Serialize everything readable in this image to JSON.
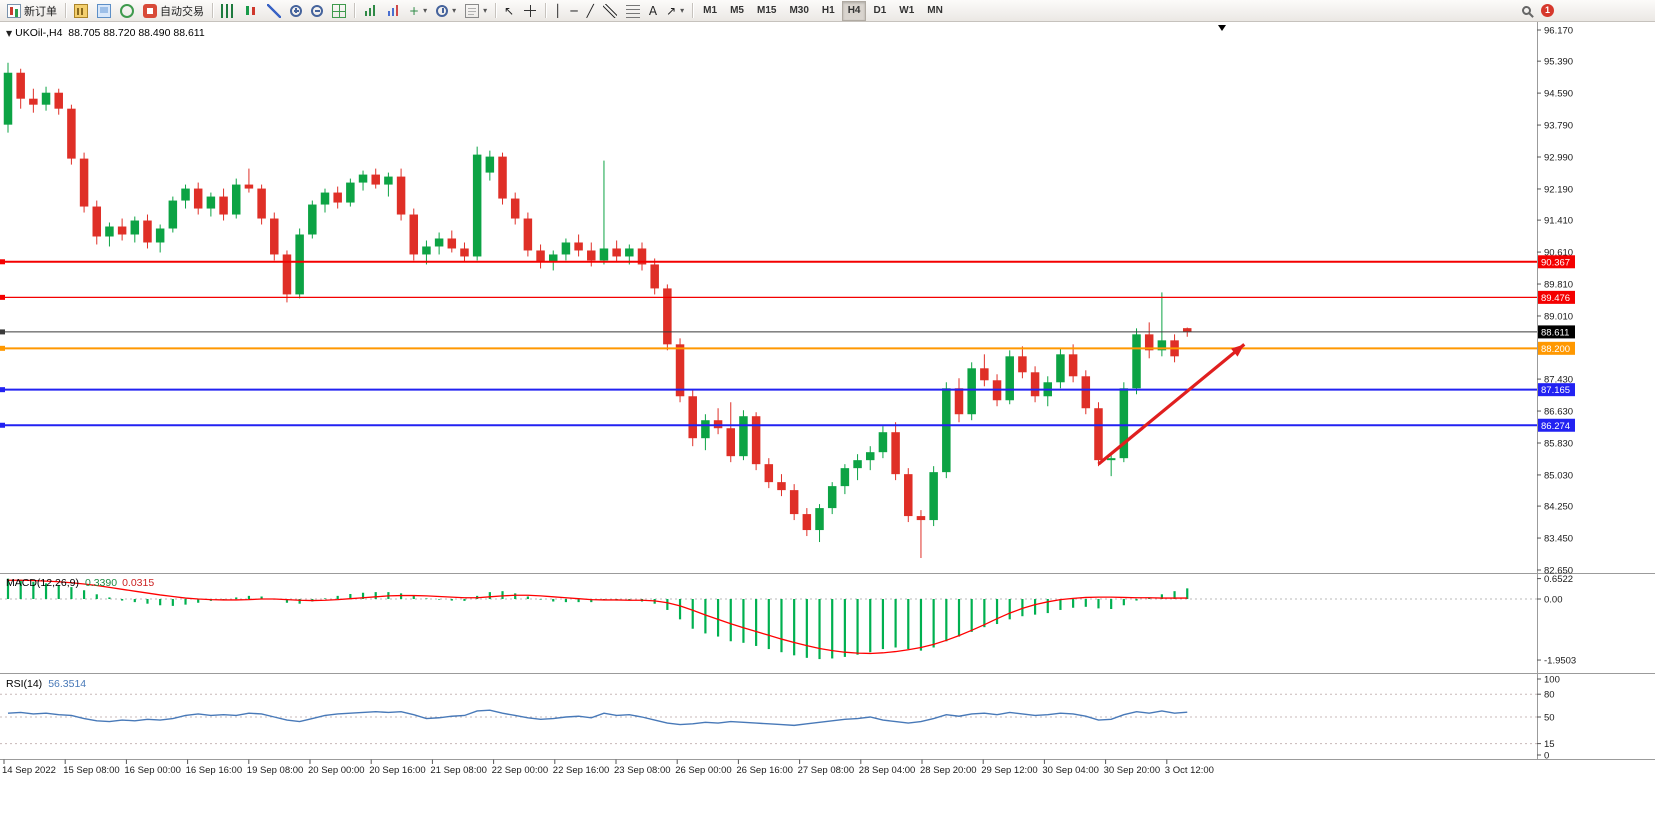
{
  "toolbar": {
    "groups": [
      {
        "items": [
          {
            "name": "new-order-button",
            "icon": "ic-new-order",
            "label": "新订单"
          }
        ]
      },
      {
        "items": [
          {
            "name": "new-chart-button",
            "icon": "ic-new-chart"
          },
          {
            "name": "profiles-button",
            "icon": "ic-profiles"
          },
          {
            "name": "refresh-button",
            "icon": "ic-refresh"
          },
          {
            "name": "auto-trading-button",
            "icon": "ic-auto",
            "label": "自动交易"
          }
        ]
      },
      {
        "items": [
          {
            "name": "bar-chart-button",
            "icon": "ic-bars"
          },
          {
            "name": "candlestick-chart-button",
            "icon": "ic-candles"
          },
          {
            "name": "line-chart-button",
            "icon": "ic-linechart"
          },
          {
            "name": "zoom-in-button",
            "icon": "ic-zoom-in"
          },
          {
            "name": "zoom-out-button",
            "icon": "ic-zoom-out"
          },
          {
            "name": "tile-windows-button",
            "icon": "ic-grid"
          }
        ]
      },
      {
        "items": [
          {
            "name": "indicators-button",
            "icon": "ic-indicators"
          },
          {
            "name": "experts-button",
            "icon": "ic-experts"
          },
          {
            "name": "add-indicator-dropdown",
            "glyph": "+",
            "color": "#2f8a46",
            "dropdown": true
          },
          {
            "name": "period-dropdown",
            "icon": "ic-clock",
            "dropdown": true
          },
          {
            "name": "template-dropdown",
            "icon": "ic-template",
            "dropdown": true
          }
        ]
      },
      {
        "items": [
          {
            "name": "cursor-button",
            "glyph": "↖",
            "color": "#222"
          },
          {
            "name": "crosshair-button",
            "icon": "ic-cross"
          }
        ]
      },
      {
        "items": [
          {
            "name": "vertical-line-button",
            "glyph": "│",
            "color": "#222"
          },
          {
            "name": "horizontal-line-button",
            "glyph": "─",
            "color": "#222"
          },
          {
            "name": "trendline-button",
            "glyph": "╱",
            "color": "#222"
          },
          {
            "name": "channel-button",
            "icon": "ic-channel"
          },
          {
            "name": "fibonacci-button",
            "icon": "ic-fibo"
          },
          {
            "name": "text-button",
            "glyph": "A",
            "color": "#222"
          },
          {
            "name": "arrows-dropdown",
            "glyph": "↗",
            "color": "#222",
            "dropdown": true
          }
        ]
      },
      {
        "items": [
          {
            "name": "tf-m1-button",
            "label": "M1"
          },
          {
            "name": "tf-m5-button",
            "label": "M5"
          },
          {
            "name": "tf-m15-button",
            "label": "M15"
          },
          {
            "name": "tf-m30-button",
            "label": "M30"
          },
          {
            "name": "tf-h1-button",
            "label": "H1"
          },
          {
            "name": "tf-h4-button",
            "label": "H4",
            "active": true
          },
          {
            "name": "tf-d1-button",
            "label": "D1"
          },
          {
            "name": "tf-w1-button",
            "label": "W1"
          },
          {
            "name": "tf-mn-button",
            "label": "MN"
          }
        ]
      }
    ],
    "right": {
      "badge": "1"
    }
  },
  "chart_data": [
    {
      "type": "candlestick",
      "title": "UKOil-,H4",
      "ohlc_display": "88.705 88.720 88.490 88.611",
      "ylim": [
        82.65,
        96.17
      ],
      "colors": {
        "up": "#0ca344",
        "down": "#df2f27"
      },
      "y_ticks": [
        "96.170",
        "95.390",
        "94.590",
        "93.790",
        "92.990",
        "92.190",
        "91.410",
        "90.610",
        "89.810",
        "89.010",
        "87.430",
        "86.630",
        "85.830",
        "85.030",
        "84.250",
        "83.450",
        "82.650"
      ],
      "x_labels": [
        "14 Sep 2022",
        "15 Sep 08:00",
        "16 Sep 00:00",
        "16 Sep 16:00",
        "19 Sep 08:00",
        "20 Sep 00:00",
        "20 Sep 16:00",
        "21 Sep 08:00",
        "22 Sep 00:00",
        "22 Sep 16:00",
        "23 Sep 08:00",
        "26 Sep 00:00",
        "26 Sep 16:00",
        "27 Sep 08:00",
        "28 Sep 04:00",
        "28 Sep 20:00",
        "29 Sep 12:00",
        "30 Sep 04:00",
        "30 Sep 20:00",
        "3 Oct 12:00"
      ],
      "hlines": [
        {
          "name": "resistance-line-90367",
          "price": 90.367,
          "color": "#f40000",
          "width": 2,
          "label": "90.367",
          "badge_bg": "#f40000"
        },
        {
          "name": "resistance-line-89476",
          "price": 89.476,
          "color": "#f40000",
          "width": 1.2,
          "label": "89.476",
          "badge_bg": "#f40000"
        },
        {
          "name": "bid-price-line",
          "price": 88.611,
          "color": "#3a3a3a",
          "width": 1,
          "label": "88.611",
          "badge_bg": "#000000"
        },
        {
          "name": "support-line-88200",
          "price": 88.2,
          "color": "#ff9800",
          "width": 2,
          "label": "88.200",
          "badge_bg": "#ff9800"
        },
        {
          "name": "support-line-87165",
          "price": 87.165,
          "color": "#2222f2",
          "width": 2,
          "label": "87.165",
          "badge_bg": "#2222f2"
        },
        {
          "name": "support-line-86274",
          "price": 86.274,
          "color": "#2222f2",
          "width": 2,
          "label": "86.274",
          "badge_bg": "#2222f2"
        }
      ],
      "arrow": {
        "from": {
          "candle": 86,
          "price": 85.3
        },
        "to": {
          "candle": 97.5,
          "price": 88.3
        },
        "color": "#e01f1f",
        "width": 3.2
      },
      "candles": [
        [
          93.8,
          95.35,
          93.6,
          95.1
        ],
        [
          95.1,
          95.2,
          94.2,
          94.45
        ],
        [
          94.45,
          94.7,
          94.1,
          94.3
        ],
        [
          94.3,
          94.75,
          94.15,
          94.6
        ],
        [
          94.6,
          94.7,
          94.05,
          94.2
        ],
        [
          94.2,
          94.3,
          92.8,
          92.95
        ],
        [
          92.95,
          93.1,
          91.6,
          91.75
        ],
        [
          91.75,
          91.9,
          90.8,
          91.0
        ],
        [
          91.0,
          91.35,
          90.75,
          91.25
        ],
        [
          91.25,
          91.45,
          90.9,
          91.05
        ],
        [
          91.05,
          91.5,
          90.85,
          91.4
        ],
        [
          91.4,
          91.55,
          90.7,
          90.85
        ],
        [
          90.85,
          91.3,
          90.6,
          91.2
        ],
        [
          91.2,
          92.0,
          91.1,
          91.9
        ],
        [
          91.9,
          92.3,
          91.7,
          92.2
        ],
        [
          92.2,
          92.35,
          91.55,
          91.7
        ],
        [
          91.7,
          92.1,
          91.5,
          92.0
        ],
        [
          92.0,
          92.2,
          91.4,
          91.55
        ],
        [
          91.55,
          92.45,
          91.45,
          92.3
        ],
        [
          92.3,
          92.7,
          92.1,
          92.2
        ],
        [
          92.2,
          92.3,
          91.3,
          91.45
        ],
        [
          91.45,
          91.6,
          90.4,
          90.55
        ],
        [
          90.55,
          90.65,
          89.35,
          89.55
        ],
        [
          89.55,
          91.2,
          89.45,
          91.05
        ],
        [
          91.05,
          91.9,
          90.95,
          91.8
        ],
        [
          91.8,
          92.2,
          91.6,
          92.1
        ],
        [
          92.1,
          92.25,
          91.7,
          91.85
        ],
        [
          91.85,
          92.45,
          91.75,
          92.35
        ],
        [
          92.35,
          92.65,
          92.15,
          92.55
        ],
        [
          92.55,
          92.7,
          92.2,
          92.3
        ],
        [
          92.3,
          92.6,
          92.0,
          92.5
        ],
        [
          92.5,
          92.7,
          91.4,
          91.55
        ],
        [
          91.55,
          91.7,
          90.4,
          90.55
        ],
        [
          90.55,
          90.9,
          90.3,
          90.75
        ],
        [
          90.75,
          91.1,
          90.55,
          90.95
        ],
        [
          90.95,
          91.15,
          90.6,
          90.7
        ],
        [
          90.7,
          90.85,
          90.35,
          90.5
        ],
        [
          90.5,
          93.25,
          90.4,
          93.05
        ],
        [
          92.6,
          93.15,
          92.4,
          93.0
        ],
        [
          93.0,
          93.1,
          91.8,
          91.95
        ],
        [
          91.95,
          92.1,
          91.3,
          91.45
        ],
        [
          91.45,
          91.6,
          90.5,
          90.65
        ],
        [
          90.65,
          90.8,
          90.2,
          90.35
        ],
        [
          90.35,
          90.65,
          90.15,
          90.55
        ],
        [
          90.55,
          90.95,
          90.4,
          90.85
        ],
        [
          90.85,
          91.05,
          90.5,
          90.65
        ],
        [
          90.65,
          90.85,
          90.25,
          90.4
        ],
        [
          90.4,
          92.9,
          90.3,
          90.7
        ],
        [
          90.7,
          90.9,
          90.35,
          90.5
        ],
        [
          90.5,
          90.8,
          90.3,
          90.7
        ],
        [
          90.7,
          90.85,
          90.15,
          90.3
        ],
        [
          90.3,
          90.45,
          89.55,
          89.7
        ],
        [
          89.7,
          89.8,
          88.15,
          88.3
        ],
        [
          88.3,
          88.45,
          86.85,
          87.0
        ],
        [
          87.0,
          87.15,
          85.75,
          85.95
        ],
        [
          85.95,
          86.55,
          85.65,
          86.4
        ],
        [
          86.4,
          86.7,
          86.05,
          86.2
        ],
        [
          86.2,
          86.85,
          85.35,
          85.5
        ],
        [
          85.5,
          86.65,
          85.4,
          86.5
        ],
        [
          86.5,
          86.6,
          85.15,
          85.3
        ],
        [
          85.3,
          85.45,
          84.7,
          84.85
        ],
        [
          84.85,
          85.05,
          84.5,
          84.65
        ],
        [
          84.65,
          84.8,
          83.9,
          84.05
        ],
        [
          84.05,
          84.2,
          83.5,
          83.65
        ],
        [
          83.65,
          84.3,
          83.35,
          84.2
        ],
        [
          84.2,
          84.85,
          84.05,
          84.75
        ],
        [
          84.75,
          85.3,
          84.55,
          85.2
        ],
        [
          85.2,
          85.55,
          84.9,
          85.4
        ],
        [
          85.4,
          85.75,
          85.15,
          85.6
        ],
        [
          85.6,
          86.25,
          85.45,
          86.1
        ],
        [
          86.1,
          86.35,
          84.9,
          85.05
        ],
        [
          85.05,
          85.2,
          83.85,
          84.0
        ],
        [
          84.0,
          84.15,
          82.95,
          83.9
        ],
        [
          83.9,
          85.25,
          83.75,
          85.1
        ],
        [
          85.1,
          87.35,
          84.95,
          87.2
        ],
        [
          87.2,
          87.45,
          86.35,
          86.55
        ],
        [
          86.55,
          87.85,
          86.4,
          87.7
        ],
        [
          87.7,
          88.05,
          87.25,
          87.4
        ],
        [
          87.4,
          87.55,
          86.75,
          86.9
        ],
        [
          86.9,
          88.15,
          86.8,
          88.0
        ],
        [
          88.0,
          88.25,
          87.45,
          87.6
        ],
        [
          87.6,
          87.75,
          86.85,
          87.0
        ],
        [
          87.0,
          87.5,
          86.75,
          87.35
        ],
        [
          87.35,
          88.2,
          87.2,
          88.05
        ],
        [
          88.05,
          88.3,
          87.35,
          87.5
        ],
        [
          87.5,
          87.65,
          86.55,
          86.7
        ],
        [
          86.7,
          86.85,
          85.25,
          85.4
        ],
        [
          85.4,
          85.55,
          85.0,
          85.45
        ],
        [
          85.45,
          87.35,
          85.35,
          87.2
        ],
        [
          87.2,
          88.7,
          87.05,
          88.55
        ],
        [
          88.55,
          88.85,
          87.95,
          88.15
        ],
        [
          88.15,
          89.6,
          88.0,
          88.4
        ],
        [
          88.4,
          88.55,
          87.85,
          88.0
        ],
        [
          88.705,
          88.72,
          88.49,
          88.611
        ]
      ]
    },
    {
      "type": "bar",
      "label": "MACD(12,26,9)",
      "values_display": [
        "0.3390",
        "0.0315"
      ],
      "colors": {
        "histogram": "#00b050",
        "signal": "#ff0000"
      },
      "y_ticks": [
        "0.6522",
        "0.00",
        "-1.9503"
      ],
      "histogram": [
        0.65,
        0.62,
        0.55,
        0.5,
        0.45,
        0.38,
        0.28,
        0.15,
        0.05,
        -0.05,
        -0.1,
        -0.15,
        -0.2,
        -0.22,
        -0.18,
        -0.12,
        -0.06,
        -0.02,
        0.05,
        0.1,
        0.08,
        -0.02,
        -0.12,
        -0.15,
        -0.08,
        0.02,
        0.1,
        0.16,
        0.2,
        0.22,
        0.22,
        0.18,
        0.1,
        0.02,
        -0.02,
        -0.05,
        -0.06,
        0.1,
        0.22,
        0.25,
        0.18,
        0.08,
        -0.02,
        -0.08,
        -0.1,
        -0.1,
        -0.1,
        -0.02,
        -0.05,
        -0.05,
        -0.08,
        -0.15,
        -0.35,
        -0.65,
        -0.95,
        -1.1,
        -1.2,
        -1.35,
        -1.4,
        -1.5,
        -1.6,
        -1.7,
        -1.8,
        -1.88,
        -1.92,
        -1.9,
        -1.85,
        -1.78,
        -1.7,
        -1.6,
        -1.55,
        -1.6,
        -1.65,
        -1.55,
        -1.35,
        -1.2,
        -1.05,
        -0.9,
        -0.8,
        -0.65,
        -0.55,
        -0.5,
        -0.45,
        -0.35,
        -0.28,
        -0.25,
        -0.3,
        -0.32,
        -0.2,
        -0.05,
        0.05,
        0.15,
        0.25,
        0.34
      ],
      "signal": [
        0.6,
        0.6,
        0.59,
        0.57,
        0.55,
        0.52,
        0.48,
        0.43,
        0.37,
        0.31,
        0.25,
        0.19,
        0.13,
        0.08,
        0.03,
        0.0,
        -0.02,
        -0.03,
        -0.03,
        -0.02,
        0.0,
        0.0,
        -0.02,
        -0.04,
        -0.05,
        -0.04,
        -0.02,
        0.01,
        0.04,
        0.07,
        0.1,
        0.11,
        0.11,
        0.1,
        0.08,
        0.06,
        0.04,
        0.04,
        0.07,
        0.1,
        0.12,
        0.12,
        0.1,
        0.07,
        0.04,
        0.01,
        -0.02,
        -0.03,
        -0.03,
        -0.04,
        -0.04,
        -0.06,
        -0.12,
        -0.22,
        -0.36,
        -0.51,
        -0.65,
        -0.79,
        -0.92,
        -1.04,
        -1.16,
        -1.28,
        -1.39,
        -1.49,
        -1.58,
        -1.65,
        -1.7,
        -1.73,
        -1.74,
        -1.72,
        -1.68,
        -1.62,
        -1.55,
        -1.45,
        -1.32,
        -1.17,
        -1.0,
        -0.82,
        -0.63,
        -0.45,
        -0.3,
        -0.18,
        -0.09,
        -0.02,
        0.02,
        0.05,
        0.06,
        0.06,
        0.05,
        0.04,
        0.04,
        0.03,
        0.03,
        0.03
      ]
    },
    {
      "type": "line",
      "label": "RSI(14)",
      "value_display": "56.3514",
      "color": "#4879b8",
      "y_ticks": [
        "100",
        "80",
        "50",
        "15",
        "0"
      ],
      "levels": [
        80,
        50,
        15
      ],
      "values": [
        55,
        56,
        54,
        55,
        53,
        52,
        48,
        45,
        44,
        46,
        45,
        47,
        46,
        48,
        52,
        54,
        52,
        53,
        52,
        55,
        54,
        50,
        46,
        44,
        48,
        52,
        54,
        55,
        56,
        57,
        56,
        57,
        53,
        48,
        49,
        51,
        52,
        58,
        59,
        55,
        52,
        49,
        47,
        48,
        50,
        51,
        49,
        55,
        52,
        53,
        50,
        46,
        42,
        40,
        41,
        43,
        42,
        44,
        43,
        42,
        41,
        40,
        39,
        41,
        43,
        45,
        47,
        48,
        50,
        46,
        44,
        42,
        44,
        48,
        53,
        51,
        54,
        55,
        53,
        56,
        54,
        52,
        53,
        55,
        54,
        51,
        46,
        47,
        53,
        57,
        55,
        58,
        55,
        56.35
      ]
    }
  ]
}
